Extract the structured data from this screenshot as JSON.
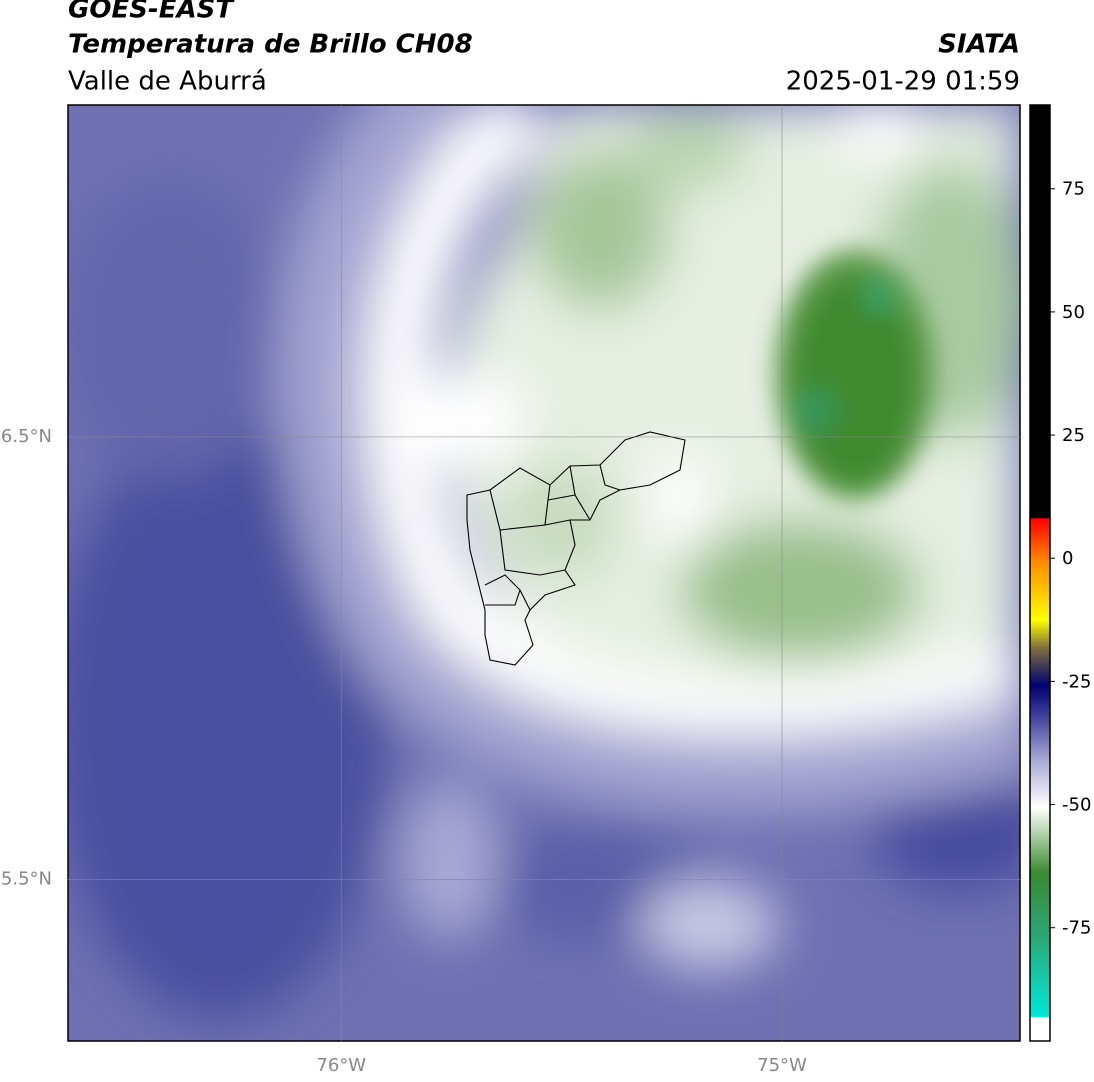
{
  "header": {
    "satellite": "GOES-EAST",
    "product": "Temperatura de Brillo CH08",
    "region": "Valle de Aburrá",
    "source": "SIATA",
    "datetime": "2025-01-29 01:59"
  },
  "map": {
    "xlim": [
      -76.62,
      -74.46
    ],
    "ylim": [
      5.135,
      7.25
    ],
    "xticks": [
      {
        "value": -76,
        "label": "76°W"
      },
      {
        "value": -75,
        "label": "75°W"
      }
    ],
    "yticks": [
      {
        "value": 6.5,
        "label": "6.5°N"
      },
      {
        "value": 5.5,
        "label": "5.5°N"
      }
    ]
  },
  "colorbar": {
    "lim": [
      -98,
      92
    ],
    "ticks": [
      75,
      50,
      25,
      0,
      -25,
      -50,
      -75
    ]
  }
}
